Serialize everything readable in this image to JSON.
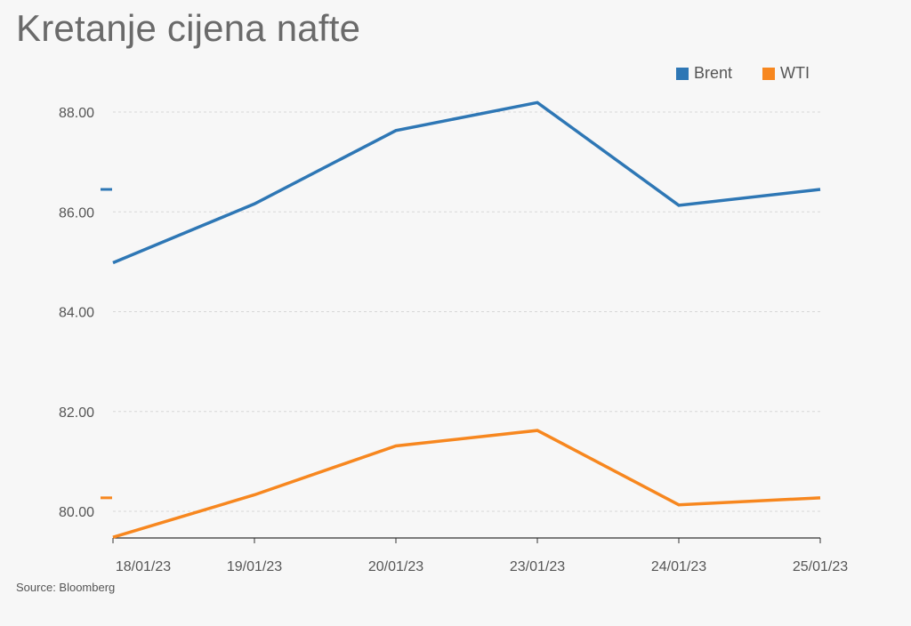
{
  "title": "Kretanje cijena nafte",
  "source": "Source: Bloomberg",
  "colors": {
    "brent": "#2e77b5",
    "wti": "#f7871f",
    "grid": "#d7d7d7",
    "axis": "#333333"
  },
  "chart_data": {
    "type": "line",
    "categories": [
      "18/01/23",
      "19/01/23",
      "20/01/23",
      "23/01/23",
      "24/01/23",
      "25/01/23"
    ],
    "series": [
      {
        "name": "Brent",
        "values": [
          84.98,
          86.16,
          87.63,
          88.19,
          86.13,
          86.45
        ]
      },
      {
        "name": "WTI",
        "values": [
          79.48,
          80.33,
          81.31,
          81.62,
          80.13,
          80.27
        ]
      }
    ],
    "yticks": [
      "80.00",
      "82.00",
      "84.00",
      "86.00",
      "88.00"
    ],
    "ylim": [
      79.5,
      88.5
    ],
    "grid": true,
    "legend": "top-right"
  }
}
